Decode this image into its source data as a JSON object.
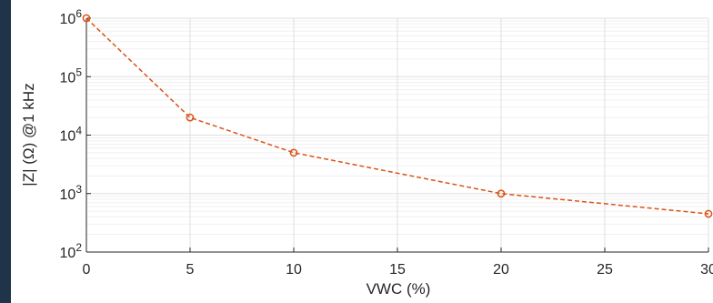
{
  "chart_data": {
    "type": "line",
    "xlabel": "VWC (%)",
    "ylabel": "|Z| (Ω) @1 kHz",
    "xlim": [
      0,
      30
    ],
    "ylim": [
      100,
      1000000
    ],
    "yscale": "log",
    "grid": true,
    "x_ticks": [
      "0",
      "5",
      "10",
      "15",
      "20",
      "25",
      "30"
    ],
    "y_ticks": [
      {
        "base": "10",
        "exp": "2"
      },
      {
        "base": "10",
        "exp": "3"
      },
      {
        "base": "10",
        "exp": "4"
      },
      {
        "base": "10",
        "exp": "5"
      },
      {
        "base": "10",
        "exp": "6"
      }
    ],
    "series": [
      {
        "x": [
          0,
          5,
          10,
          20,
          30
        ],
        "y": [
          1000000,
          20000,
          5000,
          1000,
          450
        ],
        "color": "#d95319",
        "line_style": "dashed",
        "marker": "circle"
      }
    ]
  }
}
